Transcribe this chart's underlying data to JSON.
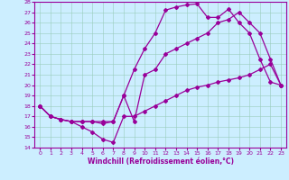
{
  "xlabel": "Windchill (Refroidissement éolien,°C)",
  "bg_color": "#cceeff",
  "line_color": "#990099",
  "xlim": [
    -0.5,
    23.5
  ],
  "ylim": [
    14,
    28
  ],
  "xticks": [
    0,
    1,
    2,
    3,
    4,
    5,
    6,
    7,
    8,
    9,
    10,
    11,
    12,
    13,
    14,
    15,
    16,
    17,
    18,
    19,
    20,
    21,
    22,
    23
  ],
  "yticks": [
    14,
    15,
    16,
    17,
    18,
    19,
    20,
    21,
    22,
    23,
    24,
    25,
    26,
    27,
    28
  ],
  "line1_x": [
    0,
    1,
    2,
    3,
    4,
    5,
    6,
    7,
    8,
    9,
    10,
    11,
    12,
    13,
    14,
    15,
    16,
    17,
    18,
    19,
    20,
    21,
    22,
    23
  ],
  "line1_y": [
    18,
    17,
    16.7,
    16.5,
    16,
    15.5,
    14.8,
    14.5,
    17,
    17,
    17.5,
    18,
    18.5,
    19,
    19.5,
    19.8,
    20,
    20.3,
    20.5,
    20.7,
    21,
    21.5,
    22,
    20
  ],
  "line2_x": [
    0,
    1,
    2,
    3,
    4,
    5,
    6,
    7,
    8,
    9,
    10,
    11,
    12,
    13,
    14,
    15,
    16,
    17,
    18,
    19,
    20,
    21,
    22,
    23
  ],
  "line2_y": [
    18,
    17,
    16.7,
    16.5,
    16.5,
    16.5,
    16.3,
    16.5,
    19,
    16.5,
    21,
    21.5,
    23,
    23.5,
    24,
    24.5,
    25,
    26,
    26.3,
    27,
    26,
    25,
    22.5,
    20
  ],
  "line3_x": [
    0,
    1,
    2,
    3,
    4,
    5,
    6,
    7,
    8,
    9,
    10,
    11,
    12,
    13,
    14,
    15,
    16,
    17,
    18,
    19,
    20,
    21,
    22,
    23
  ],
  "line3_y": [
    18,
    17,
    16.7,
    16.5,
    16.5,
    16.5,
    16.5,
    16.5,
    19,
    21.5,
    23.5,
    25,
    27.2,
    27.5,
    27.7,
    27.8,
    26.5,
    26.5,
    27.3,
    26,
    25,
    22.5,
    20.3,
    20
  ],
  "grid_color": "#99ccbb",
  "marker": "D",
  "markersize": 2.0,
  "linewidth": 0.9
}
